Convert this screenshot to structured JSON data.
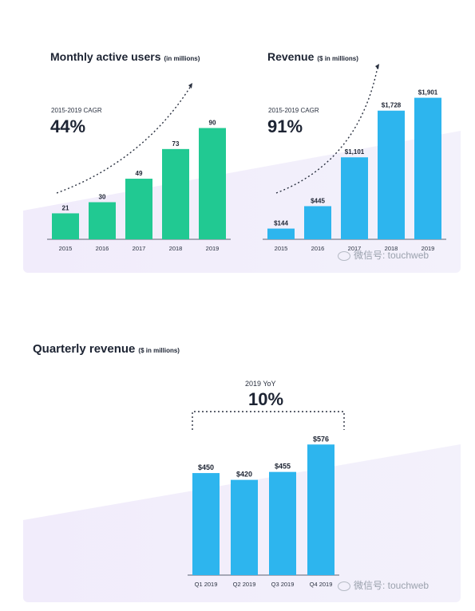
{
  "charts": {
    "mau": {
      "title": "Monthly active users",
      "unit": "(in millions)",
      "cagr_label": "2015-2019 CAGR",
      "cagr_value": "44%"
    },
    "revenue": {
      "title": "Revenue",
      "unit": "($ in millions)",
      "cagr_label": "2015-2019 CAGR",
      "cagr_value": "91%"
    },
    "quarterly": {
      "title": "Quarterly revenue",
      "unit": "($ in millions)",
      "yoy_label": "2019 YoY",
      "yoy_value": "10%"
    }
  },
  "watermark": "微信号: touchweb",
  "colors": {
    "green": "#21c992",
    "blue": "#2db5ee",
    "text": "#1d2433"
  },
  "chart_data": [
    {
      "type": "bar",
      "title": "Monthly active users",
      "subtitle": "(in millions)",
      "categories": [
        "2015",
        "2016",
        "2017",
        "2018",
        "2019"
      ],
      "values": [
        21,
        30,
        49,
        73,
        90
      ],
      "labels": [
        "21",
        "30",
        "49",
        "73",
        "90"
      ],
      "ylim": [
        0,
        100
      ],
      "color": "#21c992"
    },
    {
      "type": "bar",
      "title": "Revenue",
      "subtitle": "($ in millions)",
      "categories": [
        "2015",
        "2016",
        "2017",
        "2018",
        "2019"
      ],
      "values": [
        144,
        445,
        1101,
        1728,
        1901
      ],
      "labels": [
        "$144",
        "$445",
        "$1,101",
        "$1,728",
        "$1,901"
      ],
      "ylim": [
        0,
        2100
      ],
      "color": "#2db5ee"
    },
    {
      "type": "bar",
      "title": "Quarterly revenue",
      "subtitle": "($ in millions)",
      "categories": [
        "Q1 2019",
        "Q2 2019",
        "Q3 2019",
        "Q4 2019"
      ],
      "values": [
        450,
        420,
        455,
        576
      ],
      "labels": [
        "$450",
        "$420",
        "$455",
        "$576"
      ],
      "ylim": [
        0,
        700
      ],
      "color": "#2db5ee"
    }
  ]
}
